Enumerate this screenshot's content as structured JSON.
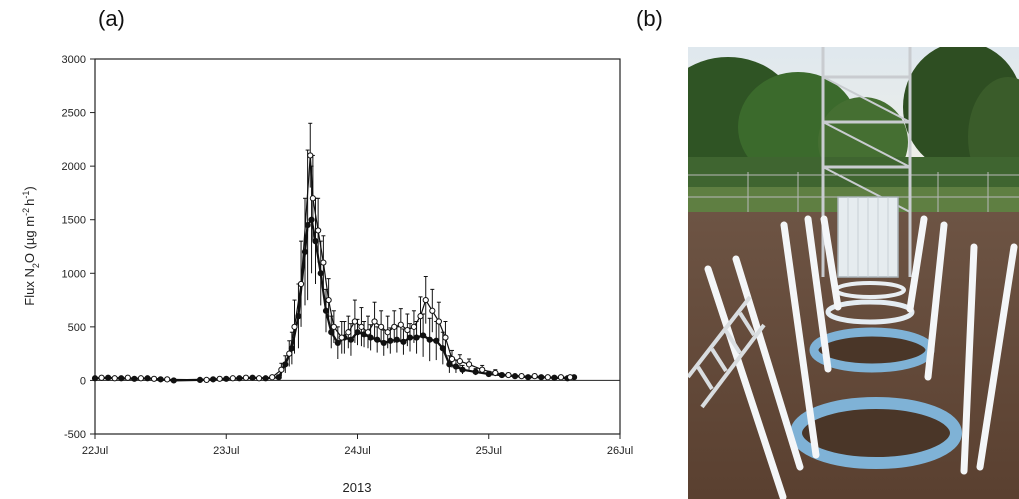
{
  "panels": {
    "a_label": "(a)",
    "b_label": "(b)"
  },
  "chart_data": {
    "type": "line",
    "xlabel": "2013",
    "ylabel": "Flux N2O (µg m⁻² h⁻¹)",
    "ylabel_parts": {
      "prefix": "Flux N",
      "sub": "2",
      "mid": "O (µg m",
      "sup1": "-2",
      "mid2": "h",
      "sup2": "-1",
      "end": ")"
    },
    "x_ticks": [
      "22Jul",
      "23Jul",
      "24Jul",
      "25Jul",
      "26Jul"
    ],
    "y_ticks": [
      -500,
      0,
      500,
      1000,
      1500,
      2000,
      2500,
      3000
    ],
    "xlim_days": [
      22,
      26
    ],
    "ylim": [
      -500,
      3000
    ],
    "grid": false,
    "series": [
      {
        "marker": "filled-circle",
        "x": [
          22.0,
          22.1,
          22.2,
          22.3,
          22.4,
          22.5,
          22.6,
          22.8,
          22.9,
          23.0,
          23.1,
          23.2,
          23.3,
          23.4,
          23.45,
          23.5,
          23.55,
          23.6,
          23.62,
          23.65,
          23.68,
          23.72,
          23.76,
          23.8,
          23.85,
          23.9,
          23.95,
          24.0,
          24.05,
          24.1,
          24.15,
          24.2,
          24.25,
          24.3,
          24.35,
          24.4,
          24.45,
          24.5,
          24.55,
          24.6,
          24.65,
          24.7,
          24.75,
          24.8,
          24.9,
          25.0,
          25.1,
          25.2,
          25.3,
          25.4,
          25.5,
          25.6,
          25.65
        ],
        "values": [
          20,
          25,
          20,
          15,
          20,
          10,
          0,
          5,
          10,
          15,
          20,
          25,
          20,
          30,
          150,
          300,
          600,
          1200,
          1450,
          1500,
          1300,
          1000,
          650,
          450,
          350,
          400,
          380,
          450,
          430,
          400,
          380,
          350,
          370,
          380,
          360,
          400,
          400,
          420,
          380,
          370,
          300,
          150,
          130,
          100,
          80,
          60,
          50,
          40,
          30,
          30,
          25,
          20,
          30
        ],
        "errors": [
          15,
          15,
          10,
          10,
          10,
          10,
          5,
          10,
          10,
          10,
          10,
          10,
          10,
          20,
          80,
          150,
          300,
          500,
          700,
          500,
          400,
          300,
          200,
          150,
          150,
          150,
          150,
          120,
          120,
          120,
          120,
          120,
          120,
          120,
          120,
          130,
          150,
          200,
          200,
          180,
          150,
          80,
          60,
          40,
          30,
          25,
          20,
          15,
          15,
          15,
          15,
          15,
          15
        ]
      },
      {
        "marker": "open-circle",
        "x": [
          22.05,
          22.15,
          22.25,
          22.35,
          22.45,
          22.55,
          22.85,
          22.95,
          23.05,
          23.15,
          23.25,
          23.35,
          23.42,
          23.48,
          23.52,
          23.57,
          23.64,
          23.66,
          23.7,
          23.74,
          23.78,
          23.82,
          23.88,
          23.93,
          23.98,
          24.03,
          24.08,
          24.13,
          24.18,
          24.23,
          24.28,
          24.33,
          24.38,
          24.43,
          24.48,
          24.52,
          24.57,
          24.62,
          24.67,
          24.72,
          24.78,
          24.85,
          24.95,
          25.05,
          25.15,
          25.25,
          25.35,
          25.45,
          25.55,
          25.62
        ],
        "values": [
          25,
          20,
          25,
          20,
          15,
          10,
          5,
          15,
          20,
          25,
          20,
          30,
          100,
          250,
          500,
          900,
          2100,
          1700,
          1400,
          1100,
          750,
          500,
          400,
          450,
          550,
          500,
          450,
          550,
          500,
          450,
          500,
          520,
          470,
          500,
          600,
          750,
          650,
          550,
          400,
          200,
          180,
          150,
          100,
          70,
          50,
          40,
          40,
          30,
          30,
          30
        ],
        "errors": [
          15,
          15,
          15,
          10,
          10,
          10,
          10,
          10,
          10,
          10,
          10,
          15,
          60,
          120,
          250,
          400,
          300,
          400,
          300,
          250,
          200,
          150,
          150,
          150,
          200,
          180,
          150,
          180,
          150,
          150,
          150,
          150,
          150,
          150,
          180,
          220,
          200,
          180,
          150,
          80,
          60,
          50,
          40,
          30,
          20,
          20,
          20,
          15,
          15,
          15
        ]
      }
    ]
  }
}
